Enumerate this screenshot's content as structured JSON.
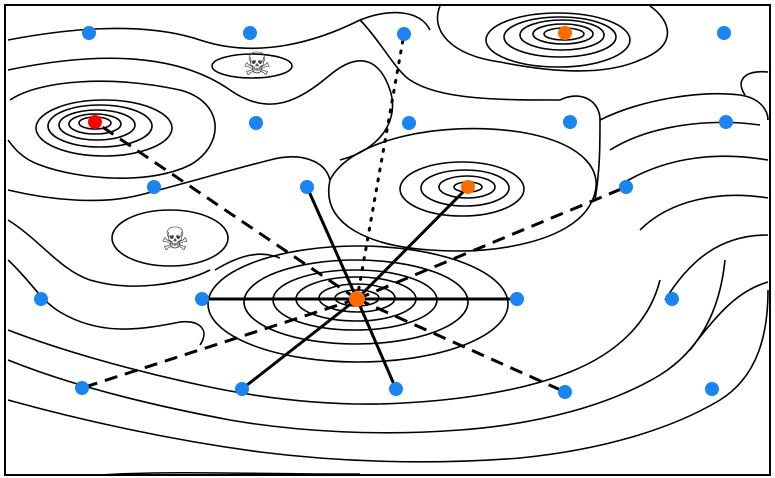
{
  "colors": {
    "node_default": "#1a84f0",
    "node_hub": "#ff6a00",
    "node_target": "#ff0000",
    "line": "#000000",
    "background": "#ffffff"
  },
  "icons": {
    "hazard": "skull-and-crossbones-icon",
    "hazard_glyph": "☠"
  },
  "edge_styles": [
    "solid",
    "dashed",
    "dotted"
  ]
}
